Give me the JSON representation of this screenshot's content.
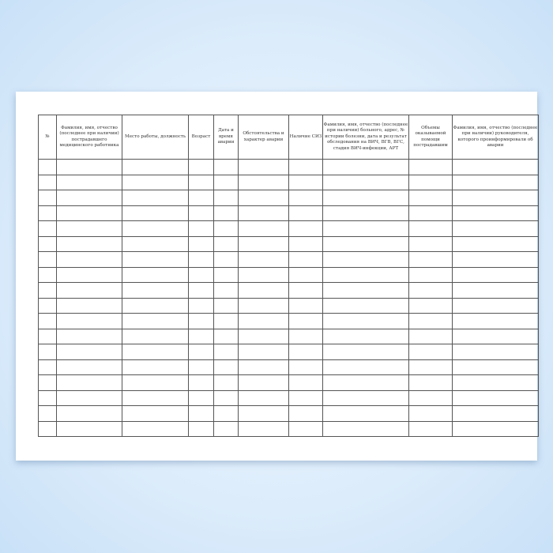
{
  "table": {
    "headers": [
      "№",
      "Фамилия, имя, отчество (последнее при наличии) пострадавшего медицинского работника",
      "Место работы, должность",
      "Возраст",
      "Дата и время аварии",
      "Обстоятельства и характер аварии",
      "Наличие СИЗ",
      "Фамилия, имя, отчество (последнее при наличии) больного, адрес, № истории болезни, дата и результат обследования на ВИЧ, ВГВ, ВГС, стадия ВИЧ-инфекции, АРТ",
      "Объемы оказываемой помощи пострадавшим",
      "Фамилия, имя, отчество (последнее при наличии) руководителя, которого проинформировали об аварии"
    ]
  }
}
